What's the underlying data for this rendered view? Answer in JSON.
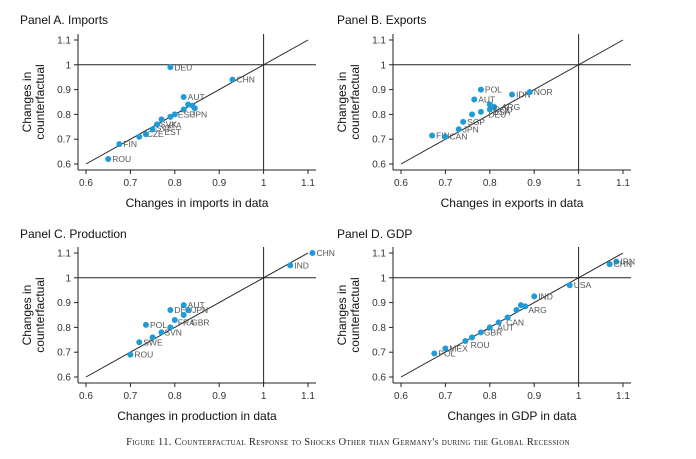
{
  "figure_caption": "Figure 11. Counterfactual Response to Shocks Other than Germany's during the Global Recession",
  "chart_data": [
    {
      "type": "scatter",
      "title": "Panel A. Imports",
      "xlabel": "Changes in imports in data",
      "ylabel_lines": [
        "Changes in",
        "counterfactual"
      ],
      "xlim": [
        0.6,
        1.1
      ],
      "ylim": [
        0.6,
        1.1
      ],
      "xticks": [
        0.6,
        0.7,
        0.8,
        0.9,
        1,
        1.1
      ],
      "yticks": [
        0.6,
        0.7,
        0.8,
        0.9,
        1,
        1.1
      ],
      "xtick_labels": [
        "0.6",
        "0.7",
        "0.8",
        "0.9",
        "1",
        "1.1"
      ],
      "ytick_labels": [
        "0.6",
        "0.7",
        "0.8",
        "0.9",
        "1",
        "1.1"
      ],
      "points": [
        {
          "label": "DEU",
          "x": 0.79,
          "y": 0.99
        },
        {
          "label": "CHN",
          "x": 0.93,
          "y": 0.94
        },
        {
          "label": "AUT",
          "x": 0.82,
          "y": 0.87
        },
        {
          "label": "",
          "x": 0.83,
          "y": 0.84
        },
        {
          "label": "",
          "x": 0.84,
          "y": 0.835
        },
        {
          "label": "",
          "x": 0.845,
          "y": 0.825
        },
        {
          "label": "",
          "x": 0.82,
          "y": 0.82
        },
        {
          "label": "",
          "x": 0.8,
          "y": 0.8
        },
        {
          "label": "",
          "x": 0.79,
          "y": 0.79
        },
        {
          "label": "",
          "x": 0.77,
          "y": 0.78
        },
        {
          "label": "",
          "x": 0.76,
          "y": 0.76
        },
        {
          "label": "",
          "x": 0.75,
          "y": 0.74
        },
        {
          "label": "",
          "x": 0.735,
          "y": 0.72
        },
        {
          "label": "",
          "x": 0.72,
          "y": 0.71
        },
        {
          "label": "FIN",
          "x": 0.675,
          "y": 0.68
        },
        {
          "label": "ROU",
          "x": 0.65,
          "y": 0.62
        }
      ],
      "cluster_labels": [
        {
          "text": "JPN",
          "x": 0.83,
          "y": 0.8
        },
        {
          "text": "ESP",
          "x": 0.8,
          "y": 0.8
        },
        {
          "text": "SVK",
          "x": 0.76,
          "y": 0.76
        },
        {
          "text": "SVE",
          "x": 0.75,
          "y": 0.745
        },
        {
          "text": "ITA",
          "x": 0.78,
          "y": 0.755
        },
        {
          "text": "CZE",
          "x": 0.73,
          "y": 0.72
        },
        {
          "text": "EST",
          "x": 0.77,
          "y": 0.73
        }
      ]
    },
    {
      "type": "scatter",
      "title": "Panel B. Exports",
      "xlabel": "Changes in exports in data",
      "ylabel_lines": [
        "Changes in",
        "counterfactual"
      ],
      "xlim": [
        0.6,
        1.1
      ],
      "ylim": [
        0.6,
        1.1
      ],
      "xticks": [
        0.6,
        0.7,
        0.8,
        0.9,
        1,
        1.1
      ],
      "yticks": [
        0.6,
        0.7,
        0.8,
        0.9,
        1,
        1.1
      ],
      "xtick_labels": [
        "0.6",
        "0.7",
        "0.8",
        "0.9",
        "1",
        "1.1"
      ],
      "ytick_labels": [
        "0.6",
        "0.7",
        "0.8",
        "0.9",
        "1",
        "1.1"
      ],
      "points": [
        {
          "label": "POL",
          "x": 0.78,
          "y": 0.9
        },
        {
          "label": "IDN",
          "x": 0.85,
          "y": 0.88
        },
        {
          "label": "NOR",
          "x": 0.89,
          "y": 0.89
        },
        {
          "label": "AUT",
          "x": 0.765,
          "y": 0.86
        },
        {
          "label": "",
          "x": 0.8,
          "y": 0.84
        },
        {
          "label": "",
          "x": 0.81,
          "y": 0.83
        },
        {
          "label": "ROU",
          "x": 0.8,
          "y": 0.82
        },
        {
          "label": "",
          "x": 0.78,
          "y": 0.81
        },
        {
          "label": "",
          "x": 0.76,
          "y": 0.8
        },
        {
          "label": "SGP",
          "x": 0.74,
          "y": 0.77
        },
        {
          "label": "JPN",
          "x": 0.73,
          "y": 0.74
        },
        {
          "label": "FIN",
          "x": 0.67,
          "y": 0.715
        },
        {
          "label": "CAN",
          "x": 0.7,
          "y": 0.71
        }
      ],
      "cluster_labels": [
        {
          "text": "ARG",
          "x": 0.82,
          "y": 0.83
        },
        {
          "text": "DEU",
          "x": 0.79,
          "y": 0.8
        },
        {
          "text": "USA",
          "x": 0.8,
          "y": 0.81
        }
      ]
    },
    {
      "type": "scatter",
      "title": "Panel C. Production",
      "xlabel": "Changes in production in data",
      "ylabel_lines": [
        "Changes in",
        "counterfactual"
      ],
      "xlim": [
        0.6,
        1.1
      ],
      "ylim": [
        0.6,
        1.1
      ],
      "xticks": [
        0.6,
        0.7,
        0.8,
        0.9,
        1,
        1.1
      ],
      "yticks": [
        0.6,
        0.7,
        0.8,
        0.9,
        1,
        1.1
      ],
      "xtick_labels": [
        "0.6",
        "0.7",
        "0.8",
        "0.9",
        "1",
        "1.1"
      ],
      "ytick_labels": [
        "0.6",
        "0.7",
        "0.8",
        "0.9",
        "1",
        "1.1"
      ],
      "points": [
        {
          "label": "CHN",
          "x": 1.11,
          "y": 1.1
        },
        {
          "label": "IND",
          "x": 1.06,
          "y": 1.05
        },
        {
          "label": "AUT",
          "x": 0.82,
          "y": 0.89
        },
        {
          "label": "DEU",
          "x": 0.79,
          "y": 0.87
        },
        {
          "label": "JPN",
          "x": 0.83,
          "y": 0.87
        },
        {
          "label": "",
          "x": 0.82,
          "y": 0.85
        },
        {
          "label": "",
          "x": 0.8,
          "y": 0.83
        },
        {
          "label": "POL",
          "x": 0.735,
          "y": 0.81
        },
        {
          "label": "",
          "x": 0.79,
          "y": 0.8
        },
        {
          "label": "",
          "x": 0.77,
          "y": 0.78
        },
        {
          "label": "",
          "x": 0.75,
          "y": 0.76
        },
        {
          "label": "SWE",
          "x": 0.72,
          "y": 0.74
        },
        {
          "label": "ROU",
          "x": 0.7,
          "y": 0.69
        }
      ],
      "cluster_labels": [
        {
          "text": "GBR",
          "x": 0.83,
          "y": 0.82
        },
        {
          "text": "FRA",
          "x": 0.8,
          "y": 0.82
        },
        {
          "text": "SVN",
          "x": 0.77,
          "y": 0.78
        }
      ]
    },
    {
      "type": "scatter",
      "title": "Panel D. GDP",
      "xlabel": "Changes in GDP in data",
      "ylabel_lines": [
        "Changes in",
        "counterfactual"
      ],
      "xlim": [
        0.6,
        1.1
      ],
      "ylim": [
        0.6,
        1.1
      ],
      "xticks": [
        0.6,
        0.7,
        0.8,
        0.9,
        1,
        1.1
      ],
      "yticks": [
        0.6,
        0.7,
        0.8,
        0.9,
        1,
        1.1
      ],
      "xtick_labels": [
        "0.6",
        "0.7",
        "0.8",
        "0.9",
        "1",
        "1.1"
      ],
      "ytick_labels": [
        "0.6",
        "0.7",
        "0.8",
        "0.9",
        "1",
        "1.1"
      ],
      "points": [
        {
          "label": "IRN",
          "x": 1.085,
          "y": 1.065
        },
        {
          "label": "CHN",
          "x": 1.07,
          "y": 1.055
        },
        {
          "label": "USA",
          "x": 0.98,
          "y": 0.97
        },
        {
          "label": "IND",
          "x": 0.9,
          "y": 0.925
        },
        {
          "label": "",
          "x": 0.87,
          "y": 0.89
        },
        {
          "label": "",
          "x": 0.88,
          "y": 0.885
        },
        {
          "label": "",
          "x": 0.86,
          "y": 0.87
        },
        {
          "label": "",
          "x": 0.84,
          "y": 0.84
        },
        {
          "label": "",
          "x": 0.82,
          "y": 0.82
        },
        {
          "label": "",
          "x": 0.8,
          "y": 0.8
        },
        {
          "label": "",
          "x": 0.78,
          "y": 0.78
        },
        {
          "label": "",
          "x": 0.76,
          "y": 0.76
        },
        {
          "label": "",
          "x": 0.745,
          "y": 0.745
        },
        {
          "label": "MEX",
          "x": 0.7,
          "y": 0.715
        },
        {
          "label": "POL",
          "x": 0.675,
          "y": 0.695
        }
      ],
      "cluster_labels": [
        {
          "text": "ARG",
          "x": 0.88,
          "y": 0.87
        },
        {
          "text": "CAN",
          "x": 0.83,
          "y": 0.82
        },
        {
          "text": "AUT",
          "x": 0.81,
          "y": 0.8
        },
        {
          "text": "GBR",
          "x": 0.78,
          "y": 0.78
        },
        {
          "text": "ROU",
          "x": 0.75,
          "y": 0.73
        }
      ]
    }
  ]
}
